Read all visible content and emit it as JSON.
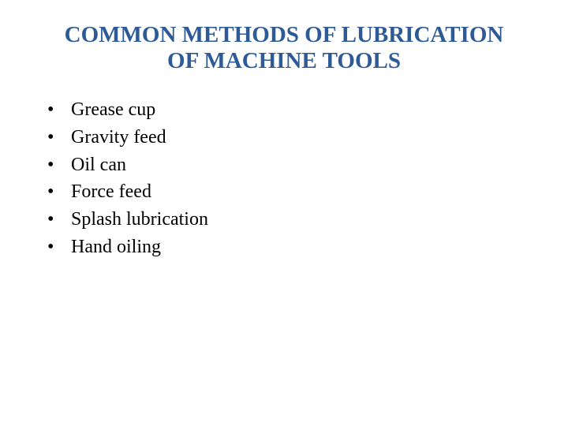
{
  "title": {
    "line1": "COMMON METHODS OF LUBRICATION",
    "line2": "OF MACHINE TOOLS",
    "color": "#2e5b96",
    "fontsize": 29
  },
  "bullets": {
    "items": [
      "Grease cup",
      "Gravity feed",
      "Oil can",
      "Force feed",
      "Splash lubrication",
      "Hand oiling"
    ],
    "color": "#000000",
    "fontsize": 24,
    "line_height": 1.45,
    "dot": "•"
  },
  "background_color": "#ffffff"
}
